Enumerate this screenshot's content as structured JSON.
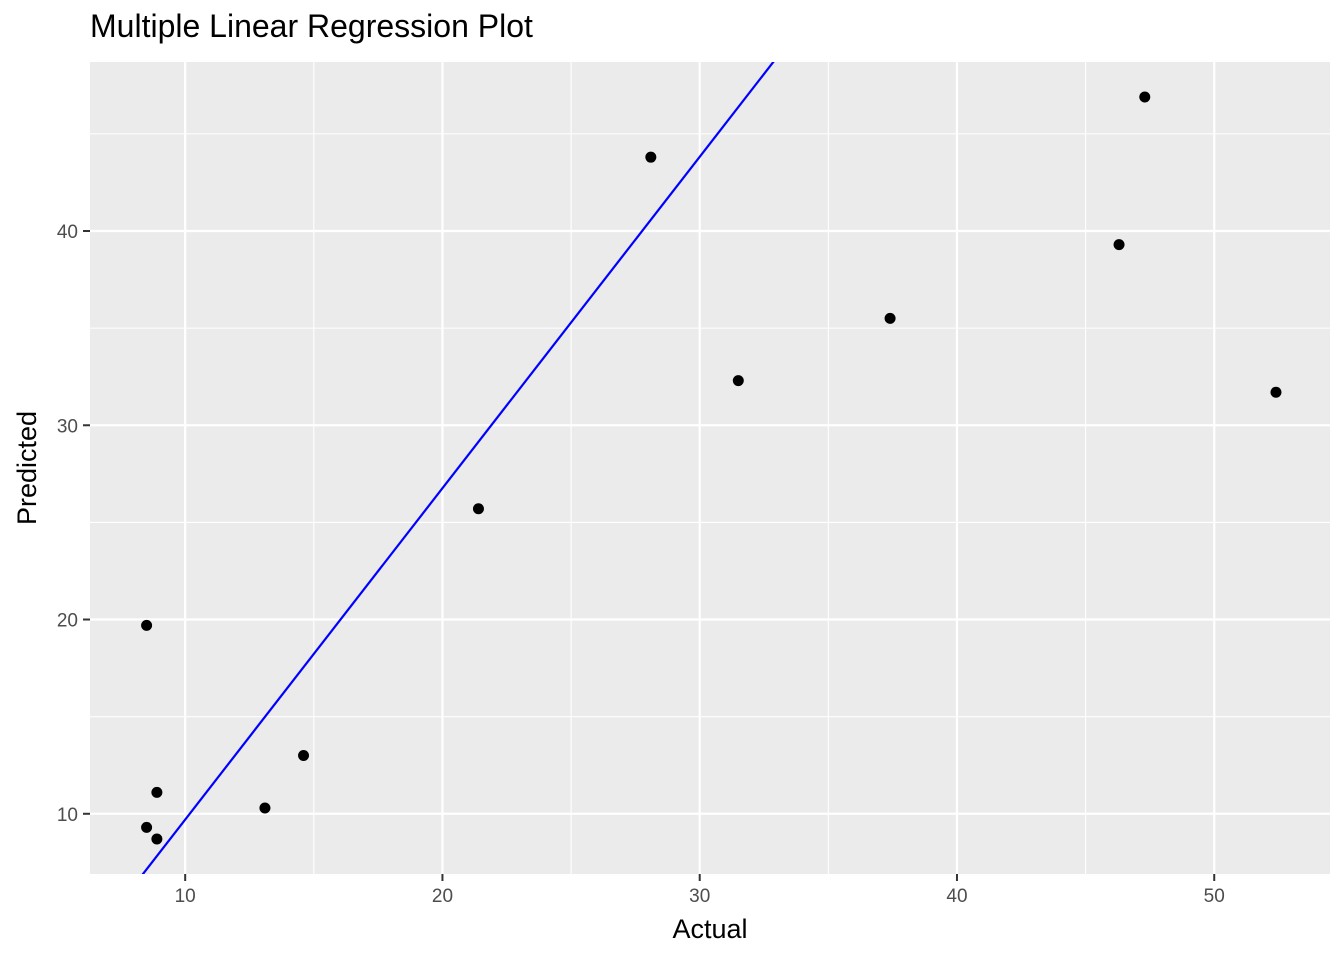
{
  "chart_data": {
    "type": "scatter",
    "title": "Multiple Linear Regression Plot",
    "xlabel": "Actual",
    "ylabel": "Predicted",
    "xlim": [
      6.3,
      54.5
    ],
    "ylim": [
      6.9,
      48.7
    ],
    "x_ticks": [
      10,
      20,
      30,
      40,
      50
    ],
    "y_ticks": [
      10,
      20,
      30,
      40
    ],
    "grid": true,
    "colors": {
      "panel": "#ebebeb",
      "grid": "#ffffff",
      "points": "#000000",
      "fit_line": "#0000ff"
    },
    "points": [
      {
        "x": 8.5,
        "y": 19.7
      },
      {
        "x": 8.5,
        "y": 9.3
      },
      {
        "x": 8.9,
        "y": 8.7
      },
      {
        "x": 8.9,
        "y": 11.1
      },
      {
        "x": 13.1,
        "y": 10.3
      },
      {
        "x": 14.6,
        "y": 13.0
      },
      {
        "x": 21.4,
        "y": 25.7
      },
      {
        "x": 28.1,
        "y": 43.8
      },
      {
        "x": 31.5,
        "y": 32.3
      },
      {
        "x": 37.4,
        "y": 35.5
      },
      {
        "x": 46.3,
        "y": 39.3
      },
      {
        "x": 47.3,
        "y": 46.9
      },
      {
        "x": 52.4,
        "y": 31.7
      }
    ],
    "fit_line": {
      "intercept": -7.36,
      "slope": 1.706
    }
  }
}
